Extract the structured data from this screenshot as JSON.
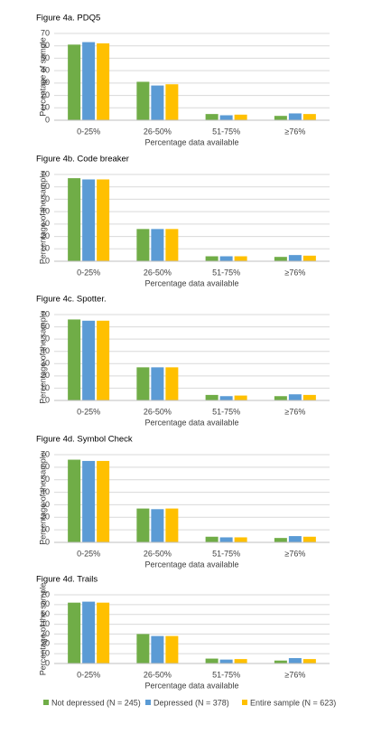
{
  "chart_data": [
    {
      "type": "bar",
      "title": "Figure 4a. PDQ5",
      "xlabel": "Percentage data available",
      "ylabel": "Percentage of sample",
      "categories": [
        "0-25%",
        "26-50%",
        "51-75%",
        "≥76%"
      ],
      "series": [
        {
          "values": [
            61,
            31,
            5,
            3.5
          ]
        },
        {
          "values": [
            63,
            28,
            4,
            5.5
          ]
        },
        {
          "values": [
            62,
            29,
            4.5,
            5
          ]
        }
      ],
      "ylim": [
        0,
        70
      ],
      "yticks": [
        0,
        10,
        20,
        30,
        40,
        50,
        60,
        70
      ],
      "grid": true
    },
    {
      "type": "bar",
      "title": "Figure 4b. Code breaker",
      "xlabel": "Percentage data available",
      "ylabel": "Percentage of the sample",
      "categories": [
        "0-25%",
        "26-50%",
        "51-75%",
        "≥76%"
      ],
      "series": [
        {
          "values": [
            67,
            26,
            4,
            3.5
          ]
        },
        {
          "values": [
            66,
            26,
            4,
            5
          ]
        },
        {
          "values": [
            66,
            26,
            4,
            4.5
          ]
        }
      ],
      "ylim": [
        0,
        70
      ],
      "yticks": [
        0,
        10,
        20,
        30,
        40,
        50,
        60,
        70
      ],
      "grid": true
    },
    {
      "type": "bar",
      "title": "Figure 4c. Spotter.",
      "xlabel": "Percentage data available",
      "ylabel": "Percentage of the sample",
      "categories": [
        "0-25%",
        "26-50%",
        "51-75%",
        "≥76%"
      ],
      "series": [
        {
          "values": [
            66,
            27,
            4.5,
            3.5
          ]
        },
        {
          "values": [
            65,
            27,
            3.5,
            5
          ]
        },
        {
          "values": [
            65,
            27,
            4,
            4.5
          ]
        }
      ],
      "ylim": [
        0,
        70
      ],
      "yticks": [
        0,
        10,
        20,
        30,
        40,
        50,
        60,
        70
      ],
      "grid": true
    },
    {
      "type": "bar",
      "title": "Figure 4d. Symbol Check",
      "xlabel": "Percentage data available",
      "ylabel": "Percentage of the sample",
      "categories": [
        "0-25%",
        "26-50%",
        "51-75%",
        "≥76%"
      ],
      "series": [
        {
          "values": [
            66,
            27,
            4.5,
            3.5
          ]
        },
        {
          "values": [
            65,
            26.5,
            4,
            5
          ]
        },
        {
          "values": [
            65,
            27,
            4,
            4.5
          ]
        }
      ],
      "ylim": [
        0,
        70
      ],
      "yticks": [
        0,
        10,
        20,
        30,
        40,
        50,
        60,
        70
      ],
      "grid": true
    },
    {
      "type": "bar",
      "title": "Figure 4d. Trails",
      "xlabel": "Percentage data available",
      "ylabel": "Percentage of the sample",
      "categories": [
        "0-25%",
        "26-50%",
        "51-75%",
        "≥76%"
      ],
      "series": [
        {
          "values": [
            62,
            30,
            5,
            3
          ]
        },
        {
          "values": [
            63,
            28,
            4,
            5.5
          ]
        },
        {
          "values": [
            62,
            28,
            4.5,
            4.5
          ]
        }
      ],
      "ylim": [
        0,
        70
      ],
      "yticks": [
        0,
        10,
        20,
        30,
        40,
        50,
        60,
        70
      ],
      "grid": true
    }
  ],
  "legend": [
    {
      "name": "Not depressed (N = 245)",
      "color": "#70ad47"
    },
    {
      "name": "Depressed (N = 378)",
      "color": "#5b9bd5"
    },
    {
      "name": "Entire sample (N = 623)",
      "color": "#ffc000"
    }
  ]
}
